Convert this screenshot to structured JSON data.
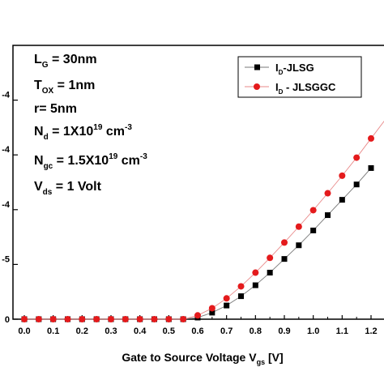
{
  "chart_data": {
    "type": "line",
    "xlabel": {
      "text": "Gate to Source Voltage V",
      "sub": "gs",
      "unit": " [V]"
    },
    "xlim": [
      0,
      1.25
    ],
    "ylim": [
      0,
      5
    ],
    "x_ticks": [
      "0.0",
      "0.1",
      "0.2",
      "0.3",
      "0.4",
      "0.5",
      "0.6",
      "0.7",
      "0.8",
      "0.9",
      "1.0",
      "1.1",
      "1.2"
    ],
    "y_tick_labels": [
      "0",
      "-5",
      "-4",
      "-4",
      "-4"
    ],
    "y_tick_values": [
      0,
      1,
      2,
      3,
      4
    ],
    "params": [
      {
        "main": "L",
        "sub": "G",
        "rest": " = 30nm"
      },
      {
        "main": "T",
        "sub": "OX",
        "rest": " = 1nm"
      },
      {
        "main": "r= 5nm"
      },
      {
        "main": "N",
        "sub": "d",
        "rest": " = 1X10",
        "sup": "19",
        "tail": " cm",
        "sup2": "-3"
      },
      {
        "main": "N",
        "sub": "gc",
        "rest": " = 1.5X10",
        "sup": "19",
        "tail": " cm",
        "sup2": "-3"
      },
      {
        "main": "V",
        "sub": "ds",
        "rest": " = 1 Volt"
      }
    ],
    "series": [
      {
        "name": "I_D-JLSG",
        "legend": {
          "main": "I",
          "sub": "D",
          "rest": "-JLSG"
        },
        "color": "#000000",
        "marker": "square",
        "x": [
          0,
          0.05,
          0.1,
          0.15,
          0.2,
          0.25,
          0.3,
          0.35,
          0.4,
          0.45,
          0.5,
          0.55,
          0.6,
          0.65,
          0.7,
          0.75,
          0.8,
          0.85,
          0.9,
          0.95,
          1.0,
          1.05,
          1.1,
          1.15,
          1.2
        ],
        "y": [
          0,
          0,
          0,
          0,
          0,
          0,
          0,
          0,
          0,
          0,
          0,
          0,
          0.03,
          0.12,
          0.25,
          0.42,
          0.62,
          0.85,
          1.1,
          1.35,
          1.62,
          1.9,
          2.18,
          2.46,
          2.76
        ]
      },
      {
        "name": "I_D - JLSGGC",
        "legend": {
          "main": "I",
          "sub": "D",
          "rest": " - JLSGGC"
        },
        "color": "#e41a1c",
        "marker": "circle",
        "x": [
          0,
          0.05,
          0.1,
          0.15,
          0.2,
          0.25,
          0.3,
          0.35,
          0.4,
          0.45,
          0.5,
          0.55,
          0.6,
          0.65,
          0.7,
          0.75,
          0.8,
          0.85,
          0.9,
          0.95,
          1.0,
          1.05,
          1.1,
          1.15,
          1.2,
          1.25
        ],
        "y": [
          0,
          0,
          0,
          0,
          0,
          0,
          0,
          0,
          0,
          0,
          0,
          0,
          0.07,
          0.2,
          0.38,
          0.6,
          0.85,
          1.12,
          1.4,
          1.69,
          1.99,
          2.3,
          2.62,
          2.95,
          3.3,
          3.65
        ]
      }
    ]
  }
}
